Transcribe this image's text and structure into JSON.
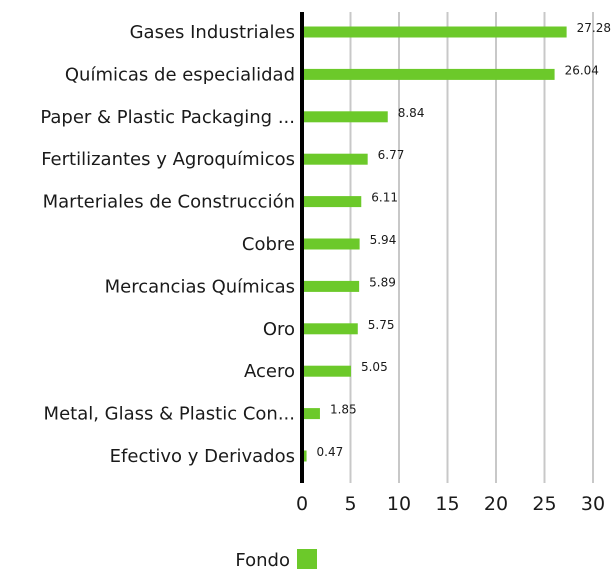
{
  "chart_data": {
    "type": "bar",
    "orientation": "horizontal",
    "categories": [
      "Gases Industriales",
      "Químicas de especialidad",
      "Paper & Plastic Packaging ...",
      "Fertilizantes y Agroquímicos",
      "Marteriales de Construcción",
      "Cobre",
      "Mercancias Químicas",
      "Oro",
      "Acero",
      "Metal, Glass & Plastic Con...",
      "Efectivo y Derivados"
    ],
    "series": [
      {
        "name": "Fondo",
        "color": "#6cc92a",
        "values": [
          27.28,
          26.04,
          8.84,
          6.77,
          6.11,
          5.94,
          5.89,
          5.75,
          5.05,
          1.85,
          0.47
        ],
        "value_labels": [
          "27.28",
          "26.04",
          "8.84",
          "6.77",
          "6.11",
          "5.94",
          "5.89",
          "5.75",
          "5.05",
          "1.85",
          "0.47"
        ]
      }
    ],
    "xlim": [
      0,
      30
    ],
    "ticks": [
      0,
      5,
      10,
      15,
      20,
      25,
      30
    ],
    "tick_labels": [
      "0",
      "5",
      "10",
      "15",
      "20",
      "25",
      "30"
    ],
    "grid": true,
    "legend": "bottom-center",
    "title": "",
    "xlabel": "",
    "ylabel": ""
  }
}
